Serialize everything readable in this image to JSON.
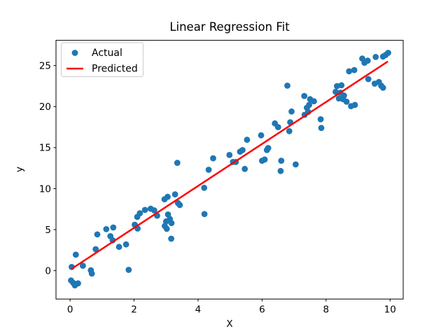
{
  "figure": {
    "title": "Linear Regression Fit",
    "xlabel": "X",
    "ylabel": "y"
  },
  "legend": {
    "position": "upper left",
    "items": [
      {
        "label": "Actual",
        "marker": "dot",
        "color": "#1f77b4"
      },
      {
        "label": "Predicted",
        "marker": "line",
        "color": "#ff0000"
      }
    ]
  },
  "chart_data": {
    "type": "scatter",
    "title": "Linear Regression Fit",
    "xlabel": "X",
    "ylabel": "y",
    "xlim": [
      -0.44,
      10.41
    ],
    "ylim": [
      -3.46,
      28.08
    ],
    "x_ticks": [
      0,
      2,
      4,
      6,
      8,
      10
    ],
    "y_ticks": [
      0,
      5,
      10,
      15,
      20,
      25
    ],
    "grid": false,
    "legend_position": "upper left",
    "series": [
      {
        "name": "Actual",
        "type": "scatter",
        "color": "#1f77b4",
        "points": [
          [
            0.05,
            0.45
          ],
          [
            0.18,
            1.95
          ],
          [
            0.4,
            0.6
          ],
          [
            0.03,
            -1.2
          ],
          [
            0.1,
            -1.5
          ],
          [
            0.15,
            -1.8
          ],
          [
            0.25,
            -1.55
          ],
          [
            0.65,
            0.05
          ],
          [
            0.68,
            -0.35
          ],
          [
            0.8,
            2.62
          ],
          [
            0.85,
            4.42
          ],
          [
            1.13,
            5.06
          ],
          [
            1.35,
            5.26
          ],
          [
            1.26,
            4.2
          ],
          [
            1.33,
            3.7
          ],
          [
            1.53,
            2.9
          ],
          [
            1.75,
            3.2
          ],
          [
            1.83,
            0.1
          ],
          [
            2.02,
            5.6
          ],
          [
            2.11,
            5.13
          ],
          [
            2.1,
            6.55
          ],
          [
            2.18,
            7.0
          ],
          [
            2.34,
            7.4
          ],
          [
            2.52,
            7.55
          ],
          [
            2.63,
            7.35
          ],
          [
            2.72,
            6.7
          ],
          [
            2.95,
            8.7
          ],
          [
            3.05,
            9.0
          ],
          [
            3.28,
            9.3
          ],
          [
            3.37,
            8.25
          ],
          [
            3.43,
            8.0
          ],
          [
            3.06,
            6.85
          ],
          [
            3.12,
            6.3
          ],
          [
            3.0,
            6.0
          ],
          [
            3.17,
            5.8
          ],
          [
            2.96,
            5.45
          ],
          [
            3.02,
            5.1
          ],
          [
            3.16,
            3.9
          ],
          [
            3.35,
            13.15
          ],
          [
            4.19,
            10.1
          ],
          [
            4.2,
            6.9
          ],
          [
            4.33,
            12.3
          ],
          [
            4.47,
            13.7
          ],
          [
            4.98,
            14.1
          ],
          [
            5.09,
            13.25
          ],
          [
            5.18,
            13.25
          ],
          [
            5.31,
            14.5
          ],
          [
            5.39,
            14.7
          ],
          [
            5.46,
            12.4
          ],
          [
            5.53,
            15.95
          ],
          [
            5.97,
            16.5
          ],
          [
            6.0,
            13.4
          ],
          [
            6.08,
            13.55
          ],
          [
            6.15,
            14.7
          ],
          [
            6.19,
            14.95
          ],
          [
            6.4,
            17.95
          ],
          [
            6.5,
            17.5
          ],
          [
            6.58,
            12.15
          ],
          [
            6.6,
            13.4
          ],
          [
            6.85,
            17.0
          ],
          [
            6.79,
            22.55
          ],
          [
            6.88,
            18.1
          ],
          [
            6.92,
            19.4
          ],
          [
            7.05,
            12.95
          ],
          [
            7.32,
            21.3
          ],
          [
            7.5,
            20.9
          ],
          [
            7.62,
            20.65
          ],
          [
            7.47,
            20.2
          ],
          [
            7.4,
            19.85
          ],
          [
            7.44,
            19.35
          ],
          [
            7.33,
            19.0
          ],
          [
            7.83,
            18.45
          ],
          [
            7.85,
            17.4
          ],
          [
            8.34,
            22.5
          ],
          [
            8.48,
            22.6
          ],
          [
            8.3,
            21.8
          ],
          [
            8.45,
            21.7
          ],
          [
            8.56,
            21.35
          ],
          [
            8.4,
            21.0
          ],
          [
            8.53,
            20.9
          ],
          [
            8.64,
            20.6
          ],
          [
            8.78,
            20.05
          ],
          [
            8.9,
            20.2
          ],
          [
            8.72,
            24.3
          ],
          [
            8.88,
            24.45
          ],
          [
            9.13,
            25.85
          ],
          [
            9.2,
            25.35
          ],
          [
            9.3,
            25.6
          ],
          [
            9.55,
            26.05
          ],
          [
            9.32,
            23.35
          ],
          [
            9.52,
            22.8
          ],
          [
            9.65,
            23.0
          ],
          [
            9.72,
            22.55
          ],
          [
            9.78,
            22.3
          ],
          [
            9.78,
            26.1
          ],
          [
            9.86,
            26.3
          ],
          [
            9.94,
            26.55
          ]
        ]
      },
      {
        "name": "Predicted",
        "type": "line",
        "color": "#ff0000",
        "points": [
          [
            0.04,
            0.2
          ],
          [
            9.93,
            25.5
          ]
        ]
      }
    ]
  }
}
